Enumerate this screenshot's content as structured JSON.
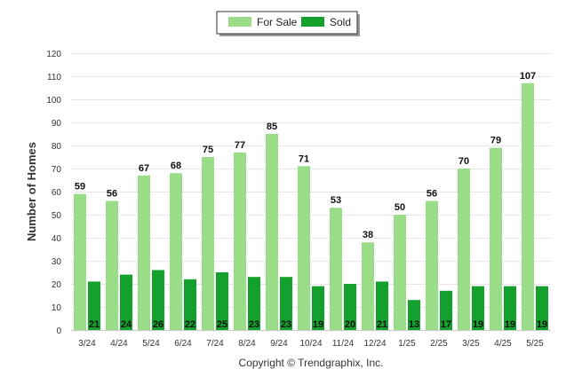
{
  "chart_data": {
    "type": "bar",
    "categories": [
      "3/24",
      "4/24",
      "5/24",
      "6/24",
      "7/24",
      "8/24",
      "9/24",
      "10/24",
      "11/24",
      "12/24",
      "1/25",
      "2/25",
      "3/25",
      "4/25",
      "5/25"
    ],
    "series": [
      {
        "name": "For Sale",
        "color": "#99dd88",
        "values": [
          59,
          56,
          67,
          68,
          75,
          77,
          85,
          71,
          53,
          38,
          50,
          56,
          70,
          79,
          107
        ]
      },
      {
        "name": "Sold",
        "color": "#14a02c",
        "values": [
          21,
          24,
          26,
          22,
          25,
          23,
          23,
          19,
          20,
          21,
          13,
          17,
          19,
          19,
          19
        ]
      }
    ],
    "ylabel": "Number of Homes",
    "xlabel": "",
    "ylim": [
      0,
      120
    ],
    "yticks": [
      0,
      10,
      20,
      30,
      40,
      50,
      60,
      70,
      80,
      90,
      100,
      110,
      120
    ],
    "grid": true,
    "legend": "top-center",
    "data_labels": true
  },
  "credit": "Copyright © Trendgraphix, Inc."
}
